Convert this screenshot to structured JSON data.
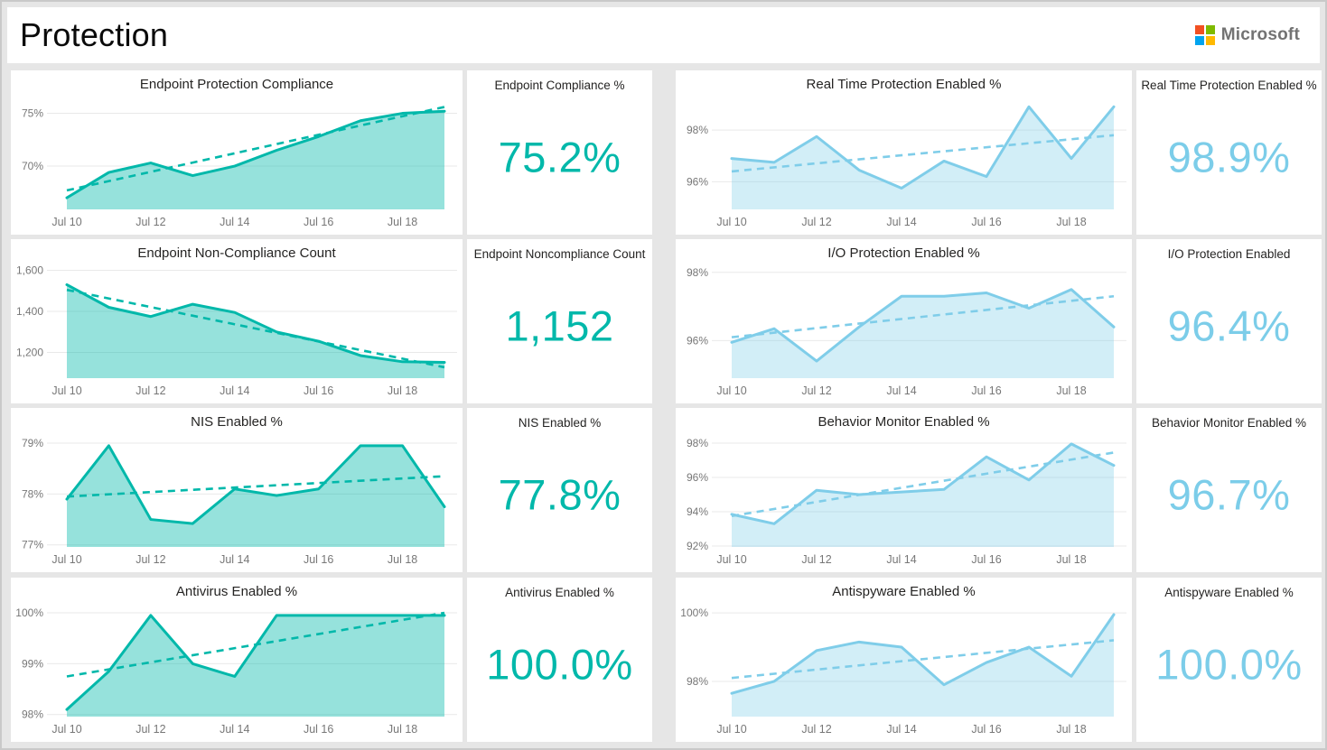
{
  "header": {
    "title": "Protection",
    "brand": "Microsoft"
  },
  "colors": {
    "background": "#e6e6e6",
    "tile": "#ffffff",
    "teal_line": "#01B8AA",
    "teal_fill": "rgba(1,184,170,0.41)",
    "teal_value": "#01B8AA",
    "blue_line": "#7FCDE9",
    "blue_fill": "rgba(127,205,233,0.35)",
    "blue_value": "#7CCDE9",
    "grid": "#e9e9e9",
    "axis_text": "#777777",
    "title_text": "#252423",
    "ms_red": "#F25022",
    "ms_green": "#7FBA00",
    "ms_blue": "#00A4EF",
    "ms_yellow": "#FFB900"
  },
  "chart_data": [
    {
      "type": "area",
      "title": "Endpoint Protection Compliance",
      "scheme": "teal",
      "x": [
        "Jul 10",
        "Jul 11",
        "Jul 12",
        "Jul 13",
        "Jul 14",
        "Jul 15",
        "Jul 16",
        "Jul 17",
        "Jul 18",
        "Jul 19"
      ],
      "x_tick_labels": [
        "Jul 10",
        "Jul 12",
        "Jul 14",
        "Jul 16",
        "Jul 18"
      ],
      "values": [
        67.0,
        69.4,
        70.3,
        69.1,
        70.0,
        71.5,
        72.8,
        74.3,
        75.0,
        75.2
      ],
      "trendline": [
        67.7,
        75.6
      ],
      "yticks": [
        {
          "v": 70,
          "label": "70%"
        },
        {
          "v": 75,
          "label": "75%"
        }
      ],
      "ylim": [
        65.9,
        76.5
      ],
      "grid": true,
      "legend": false
    },
    {
      "type": "area",
      "title": "Endpoint Non-Compliance Count",
      "scheme": "teal",
      "x": [
        "Jul 10",
        "Jul 11",
        "Jul 12",
        "Jul 13",
        "Jul 14",
        "Jul 15",
        "Jul 16",
        "Jul 17",
        "Jul 18",
        "Jul 19"
      ],
      "x_tick_labels": [
        "Jul 10",
        "Jul 12",
        "Jul 14",
        "Jul 16",
        "Jul 18"
      ],
      "values": [
        1530,
        1420,
        1375,
        1435,
        1395,
        1300,
        1255,
        1185,
        1155,
        1152
      ],
      "trendline": [
        1505,
        1128
      ],
      "yticks": [
        {
          "v": 1200,
          "label": "1,200"
        },
        {
          "v": 1400,
          "label": "1,400"
        },
        {
          "v": 1600,
          "label": "1,600"
        }
      ],
      "ylim": [
        1075,
        1620
      ],
      "grid": true,
      "legend": false
    },
    {
      "type": "area",
      "title": "NIS Enabled %",
      "scheme": "teal",
      "x": [
        "Jul 10",
        "Jul 11",
        "Jul 12",
        "Jul 13",
        "Jul 14",
        "Jul 15",
        "Jul 16",
        "Jul 17",
        "Jul 18",
        "Jul 19"
      ],
      "x_tick_labels": [
        "Jul 10",
        "Jul 12",
        "Jul 14",
        "Jul 16",
        "Jul 18"
      ],
      "values": [
        77.9,
        78.95,
        77.5,
        77.42,
        78.1,
        77.97,
        78.1,
        78.95,
        78.95,
        77.75
      ],
      "trendline": [
        77.95,
        78.35
      ],
      "yticks": [
        {
          "v": 77,
          "label": "77%"
        },
        {
          "v": 78,
          "label": "78%"
        },
        {
          "v": 79,
          "label": "79%"
        }
      ],
      "ylim": [
        76.96,
        79.16
      ],
      "grid": true,
      "legend": false
    },
    {
      "type": "area",
      "title": "Antivirus Enabled %",
      "scheme": "teal",
      "x": [
        "Jul 10",
        "Jul 11",
        "Jul 12",
        "Jul 13",
        "Jul 14",
        "Jul 15",
        "Jul 16",
        "Jul 17",
        "Jul 18",
        "Jul 19"
      ],
      "x_tick_labels": [
        "Jul 10",
        "Jul 12",
        "Jul 14",
        "Jul 16",
        "Jul 18"
      ],
      "values": [
        98.1,
        98.85,
        99.95,
        99.0,
        98.75,
        99.95,
        99.95,
        99.95,
        99.95,
        99.95
      ],
      "trendline": [
        98.75,
        100.0
      ],
      "yticks": [
        {
          "v": 98,
          "label": "98%"
        },
        {
          "v": 99,
          "label": "99%"
        },
        {
          "v": 100,
          "label": "100%"
        }
      ],
      "ylim": [
        97.96,
        100.16
      ],
      "grid": true,
      "legend": false
    },
    {
      "type": "area",
      "title": "Real Time Protection Enabled %",
      "scheme": "blue",
      "x": [
        "Jul 10",
        "Jul 11",
        "Jul 12",
        "Jul 13",
        "Jul 14",
        "Jul 15",
        "Jul 16",
        "Jul 17",
        "Jul 18",
        "Jul 19"
      ],
      "x_tick_labels": [
        "Jul 10",
        "Jul 12",
        "Jul 14",
        "Jul 16",
        "Jul 18"
      ],
      "values": [
        96.9,
        96.75,
        97.75,
        96.45,
        95.75,
        96.8,
        96.2,
        98.9,
        96.9,
        98.9
      ],
      "trendline": [
        96.4,
        97.8
      ],
      "yticks": [
        {
          "v": 96,
          "label": "96%"
        },
        {
          "v": 98,
          "label": "98%"
        }
      ],
      "ylim": [
        94.93,
        99.26
      ],
      "grid": true,
      "legend": false
    },
    {
      "type": "area",
      "title": "I/O Protection Enabled %",
      "scheme": "blue",
      "x": [
        "Jul 10",
        "Jul 11",
        "Jul 12",
        "Jul 13",
        "Jul 14",
        "Jul 15",
        "Jul 16",
        "Jul 17",
        "Jul 18",
        "Jul 19"
      ],
      "x_tick_labels": [
        "Jul 10",
        "Jul 12",
        "Jul 14",
        "Jul 16",
        "Jul 18"
      ],
      "values": [
        95.95,
        96.35,
        95.4,
        96.4,
        97.3,
        97.3,
        97.4,
        96.95,
        97.5,
        96.4
      ],
      "trendline": [
        96.1,
        97.3
      ],
      "yticks": [
        {
          "v": 96,
          "label": "96%"
        },
        {
          "v": 98,
          "label": "98%"
        }
      ],
      "ylim": [
        94.9,
        98.18
      ],
      "grid": true,
      "legend": false
    },
    {
      "type": "area",
      "title": "Behavior Monitor Enabled %",
      "scheme": "blue",
      "x": [
        "Jul 10",
        "Jul 11",
        "Jul 12",
        "Jul 13",
        "Jul 14",
        "Jul 15",
        "Jul 16",
        "Jul 17",
        "Jul 18",
        "Jul 19"
      ],
      "x_tick_labels": [
        "Jul 10",
        "Jul 12",
        "Jul 14",
        "Jul 16",
        "Jul 18"
      ],
      "values": [
        93.85,
        93.3,
        95.25,
        95.0,
        95.15,
        95.3,
        97.2,
        95.85,
        97.95,
        96.7
      ],
      "trendline": [
        93.75,
        97.45
      ],
      "yticks": [
        {
          "v": 92,
          "label": "92%"
        },
        {
          "v": 94,
          "label": "94%"
        },
        {
          "v": 96,
          "label": "96%"
        },
        {
          "v": 98,
          "label": "98%"
        }
      ],
      "ylim": [
        91.95,
        98.47
      ],
      "grid": true,
      "legend": false
    },
    {
      "type": "area",
      "title": "Antispyware Enabled %",
      "scheme": "blue",
      "x": [
        "Jul 10",
        "Jul 11",
        "Jul 12",
        "Jul 13",
        "Jul 14",
        "Jul 15",
        "Jul 16",
        "Jul 17",
        "Jul 18",
        "Jul 19"
      ],
      "x_tick_labels": [
        "Jul 10",
        "Jul 12",
        "Jul 14",
        "Jul 16",
        "Jul 18"
      ],
      "values": [
        97.65,
        98.0,
        98.9,
        99.15,
        99.0,
        97.9,
        98.55,
        99.0,
        98.15,
        99.95
      ],
      "trendline": [
        98.1,
        99.2
      ],
      "yticks": [
        {
          "v": 98,
          "label": "98%"
        },
        {
          "v": 100,
          "label": "100%"
        }
      ],
      "ylim": [
        96.97,
        100.24
      ],
      "grid": true,
      "legend": false
    }
  ],
  "kpis": [
    {
      "title": "Endpoint Compliance %",
      "value": "75.2%",
      "scheme": "teal"
    },
    {
      "title": "Endpoint Noncompliance Count",
      "value": "1,152",
      "scheme": "teal"
    },
    {
      "title": "NIS Enabled %",
      "value": "77.8%",
      "scheme": "teal"
    },
    {
      "title": "Antivirus Enabled %",
      "value": "100.0%",
      "scheme": "teal"
    },
    {
      "title": "Real Time Protection Enabled %",
      "value": "98.9%",
      "scheme": "blue"
    },
    {
      "title": "I/O Protection Enabled",
      "value": "96.4%",
      "scheme": "blue"
    },
    {
      "title": "Behavior Monitor Enabled %",
      "value": "96.7%",
      "scheme": "blue"
    },
    {
      "title": "Antispyware Enabled %",
      "value": "100.0%",
      "scheme": "blue"
    }
  ]
}
